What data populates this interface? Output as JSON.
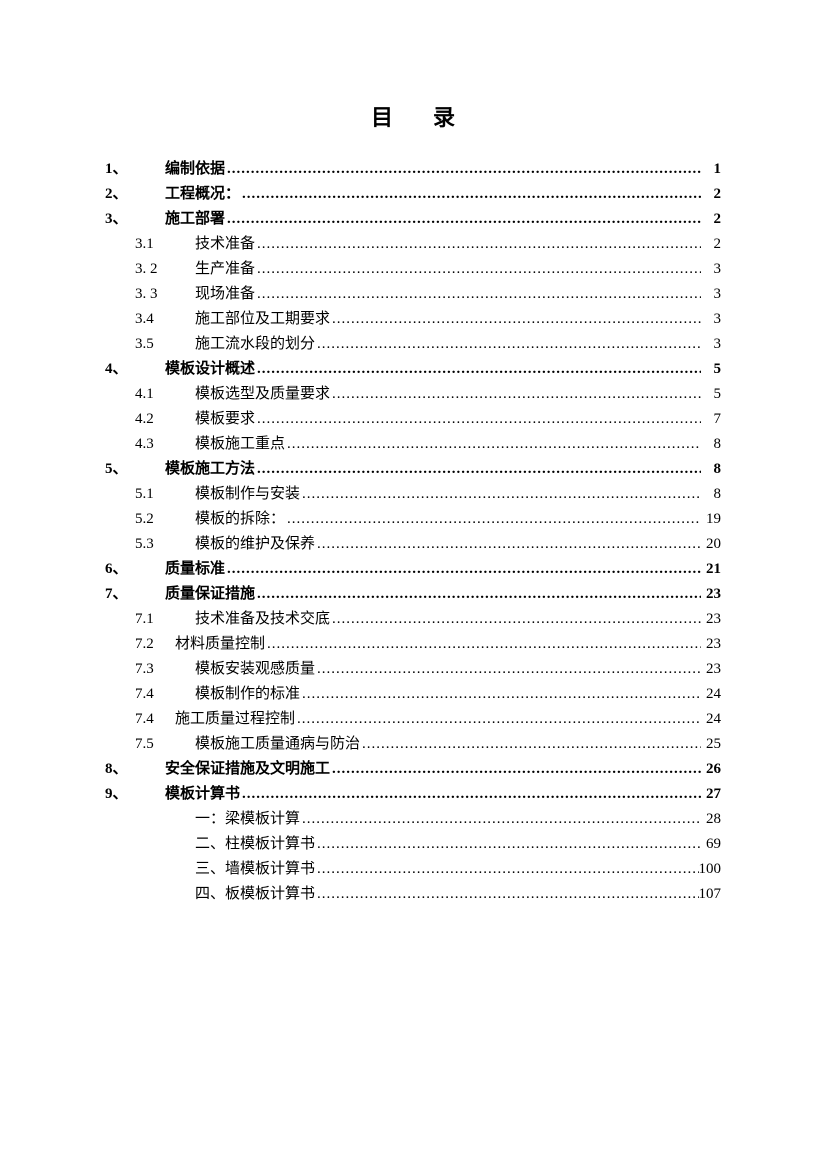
{
  "title": "目录",
  "entries": [
    {
      "level": 1,
      "num": "1、",
      "label": "编制依据",
      "page": "1",
      "bold": true
    },
    {
      "level": 1,
      "num": "2、",
      "label": "工程概况：",
      "page": "2",
      "bold": true
    },
    {
      "level": 1,
      "num": "3、",
      "label": "施工部署",
      "page": "2",
      "bold": true
    },
    {
      "level": 2,
      "num": "3.1",
      "label": "技术准备",
      "page": "2",
      "bold": false
    },
    {
      "level": 2,
      "num": "3. 2",
      "label": "生产准备",
      "page": "3",
      "bold": false
    },
    {
      "level": 2,
      "num": "3. 3",
      "label": "现场准备",
      "page": "3",
      "bold": false
    },
    {
      "level": 2,
      "num": "3.4",
      "label": "施工部位及工期要求",
      "page": "3",
      "bold": false
    },
    {
      "level": 2,
      "num": "3.5",
      "label": "施工流水段的划分",
      "page": "3",
      "bold": false
    },
    {
      "level": 1,
      "num": "4、",
      "label": "模板设计概述",
      "page": "5",
      "bold": true
    },
    {
      "level": 2,
      "num": "4.1",
      "label": "模板选型及质量要求",
      "page": "5",
      "bold": false
    },
    {
      "level": 2,
      "num": "4.2",
      "label": "模板要求",
      "page": "7",
      "bold": false
    },
    {
      "level": 2,
      "num": "4.3",
      "label": "模板施工重点",
      "page": "8",
      "bold": false
    },
    {
      "level": 1,
      "num": "5、",
      "label": "模板施工方法",
      "page": "8",
      "bold": true
    },
    {
      "level": 2,
      "num": "5.1",
      "label": "模板制作与安装",
      "page": "8",
      "bold": false
    },
    {
      "level": 2,
      "num": "5.2",
      "label": "模板的拆除：",
      "page": "19",
      "bold": false
    },
    {
      "level": 2,
      "num": "5.3",
      "label": "模板的维护及保养",
      "page": "20",
      "bold": false
    },
    {
      "level": 1,
      "num": "6、",
      "label": "质量标准",
      "page": "21",
      "bold": true
    },
    {
      "level": 1,
      "num": "7、",
      "label": "质量保证措施",
      "page": "23",
      "bold": true
    },
    {
      "level": 2,
      "num": "7.1",
      "label": "技术准备及技术交底",
      "page": "23",
      "bold": false
    },
    {
      "level": 2,
      "num": "7.2",
      "label": "材料质量控制",
      "page": "23",
      "bold": false,
      "tight": true
    },
    {
      "level": 2,
      "num": "7.3",
      "label": "模板安装观感质量",
      "page": "23",
      "bold": false
    },
    {
      "level": 2,
      "num": "7.4",
      "label": "模板制作的标准",
      "page": "24",
      "bold": false
    },
    {
      "level": 2,
      "num": "7.4",
      "label": "施工质量过程控制",
      "page": "24",
      "bold": false,
      "tight": true
    },
    {
      "level": 2,
      "num": "7.5",
      "label": "模板施工质量通病与防治",
      "page": "25",
      "bold": false
    },
    {
      "level": 1,
      "num": "8、",
      "label": "安全保证措施及文明施工",
      "page": "26",
      "bold": true
    },
    {
      "level": 1,
      "num": "9、",
      "label": "模板计算书",
      "page": "27",
      "bold": true
    },
    {
      "level": 3,
      "num": "",
      "label": "一：梁模板计算",
      "page": "28",
      "bold": false
    },
    {
      "level": 3,
      "num": "",
      "label": "二、柱模板计算书",
      "page": "69",
      "bold": false
    },
    {
      "level": 3,
      "num": "",
      "label": "三、墙模板计算书",
      "page": "100",
      "bold": false
    },
    {
      "level": 3,
      "num": "",
      "label": "四、板模板计算书",
      "page": "107",
      "bold": false
    }
  ]
}
